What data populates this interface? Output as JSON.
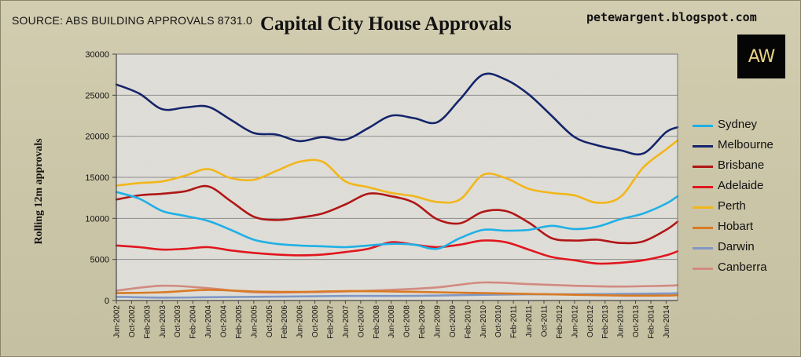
{
  "header": {
    "source": "SOURCE: ABS BUILDING APPROVALS 8731.0",
    "blog": "petewargent.blogspot.com",
    "logo_text": "AW"
  },
  "colors": {
    "plot_bg": "#dcdad3",
    "grid": "#8c8c8c",
    "axis": "#444444"
  },
  "chart_data": {
    "type": "line",
    "title": "Capital City House Approvals",
    "ylabel": "Rolling 12m approvals",
    "xlabel": "",
    "ylim": [
      0,
      30000
    ],
    "yticks": [
      0,
      5000,
      10000,
      15000,
      20000,
      25000,
      30000
    ],
    "ytick_labels": [
      "0",
      "5000",
      "10000",
      "15000",
      "20000",
      "25000",
      "30000"
    ],
    "grid": true,
    "legend": "right",
    "x_start": "2002-06",
    "x_end": "2014-09",
    "xtick_labels": [
      "Jun-2002",
      "Oct-2002",
      "Feb-2003",
      "Jun-2003",
      "Oct-2003",
      "Feb-2004",
      "Jun-2004",
      "Oct-2004",
      "Feb-2005",
      "Jun-2005",
      "Oct-2005",
      "Feb-2006",
      "Jun-2006",
      "Oct-2006",
      "Feb-2007",
      "Jun-2007",
      "Oct-2007",
      "Feb-2008",
      "Jun-2008",
      "Oct-2008",
      "Feb-2009",
      "Jun-2009",
      "Oct-2009",
      "Feb-2010",
      "Jun-2010",
      "Oct-2010",
      "Feb-2011",
      "Jun-2011",
      "Oct-2011",
      "Feb-2012",
      "Jun-2012",
      "Oct-2012",
      "Feb-2013",
      "Jun-2013",
      "Oct-2013",
      "Feb-2014",
      "Jun-2014"
    ],
    "series": [
      {
        "name": "Sydney",
        "color": "#1fb0e6",
        "points": [
          [
            "2002-06",
            13200
          ],
          [
            "2002-12",
            12400
          ],
          [
            "2003-06",
            10900
          ],
          [
            "2003-12",
            10300
          ],
          [
            "2004-06",
            9700
          ],
          [
            "2004-12",
            8600
          ],
          [
            "2005-06",
            7400
          ],
          [
            "2005-12",
            6900
          ],
          [
            "2006-06",
            6700
          ],
          [
            "2006-12",
            6600
          ],
          [
            "2007-06",
            6500
          ],
          [
            "2007-12",
            6700
          ],
          [
            "2008-06",
            6900
          ],
          [
            "2008-12",
            6800
          ],
          [
            "2009-06",
            6300
          ],
          [
            "2009-12",
            7600
          ],
          [
            "2010-06",
            8600
          ],
          [
            "2010-12",
            8500
          ],
          [
            "2011-06",
            8600
          ],
          [
            "2011-12",
            9100
          ],
          [
            "2012-06",
            8700
          ],
          [
            "2012-12",
            9000
          ],
          [
            "2013-06",
            9900
          ],
          [
            "2013-12",
            10600
          ],
          [
            "2014-06",
            11800
          ],
          [
            "2014-09",
            12700
          ]
        ]
      },
      {
        "name": "Melbourne",
        "color": "#14246b",
        "points": [
          [
            "2002-06",
            26300
          ],
          [
            "2002-12",
            25200
          ],
          [
            "2003-06",
            23300
          ],
          [
            "2003-12",
            23500
          ],
          [
            "2004-06",
            23600
          ],
          [
            "2004-12",
            22000
          ],
          [
            "2005-06",
            20400
          ],
          [
            "2005-12",
            20200
          ],
          [
            "2006-06",
            19400
          ],
          [
            "2006-12",
            19900
          ],
          [
            "2007-06",
            19600
          ],
          [
            "2007-12",
            21000
          ],
          [
            "2008-06",
            22500
          ],
          [
            "2008-12",
            22200
          ],
          [
            "2009-06",
            21700
          ],
          [
            "2009-12",
            24500
          ],
          [
            "2010-06",
            27500
          ],
          [
            "2010-12",
            26900
          ],
          [
            "2011-06",
            25100
          ],
          [
            "2011-12",
            22500
          ],
          [
            "2012-06",
            19900
          ],
          [
            "2012-12",
            18900
          ],
          [
            "2013-06",
            18300
          ],
          [
            "2013-12",
            17900
          ],
          [
            "2014-06",
            20500
          ],
          [
            "2014-09",
            21100
          ]
        ]
      },
      {
        "name": "Brisbane",
        "color": "#b01616",
        "points": [
          [
            "2002-06",
            12300
          ],
          [
            "2002-12",
            12800
          ],
          [
            "2003-06",
            13000
          ],
          [
            "2003-12",
            13300
          ],
          [
            "2004-06",
            13900
          ],
          [
            "2004-12",
            12100
          ],
          [
            "2005-06",
            10200
          ],
          [
            "2005-12",
            9800
          ],
          [
            "2006-06",
            10100
          ],
          [
            "2006-12",
            10600
          ],
          [
            "2007-06",
            11700
          ],
          [
            "2007-12",
            13000
          ],
          [
            "2008-06",
            12700
          ],
          [
            "2008-12",
            11900
          ],
          [
            "2009-06",
            9900
          ],
          [
            "2009-12",
            9400
          ],
          [
            "2010-06",
            10800
          ],
          [
            "2010-12",
            10900
          ],
          [
            "2011-06",
            9500
          ],
          [
            "2011-12",
            7600
          ],
          [
            "2012-06",
            7300
          ],
          [
            "2012-12",
            7400
          ],
          [
            "2013-06",
            7000
          ],
          [
            "2013-12",
            7200
          ],
          [
            "2014-06",
            8600
          ],
          [
            "2014-09",
            9600
          ]
        ]
      },
      {
        "name": "Adelaide",
        "color": "#e0161e",
        "points": [
          [
            "2002-06",
            6700
          ],
          [
            "2002-12",
            6500
          ],
          [
            "2003-06",
            6200
          ],
          [
            "2003-12",
            6300
          ],
          [
            "2004-06",
            6500
          ],
          [
            "2004-12",
            6100
          ],
          [
            "2005-06",
            5800
          ],
          [
            "2005-12",
            5600
          ],
          [
            "2006-06",
            5500
          ],
          [
            "2006-12",
            5600
          ],
          [
            "2007-06",
            5900
          ],
          [
            "2007-12",
            6300
          ],
          [
            "2008-06",
            7100
          ],
          [
            "2008-12",
            6800
          ],
          [
            "2009-06",
            6500
          ],
          [
            "2009-12",
            6800
          ],
          [
            "2010-06",
            7300
          ],
          [
            "2010-12",
            7100
          ],
          [
            "2011-06",
            6200
          ],
          [
            "2011-12",
            5300
          ],
          [
            "2012-06",
            4900
          ],
          [
            "2012-12",
            4500
          ],
          [
            "2013-06",
            4600
          ],
          [
            "2013-12",
            4900
          ],
          [
            "2014-06",
            5500
          ],
          [
            "2014-09",
            6000
          ]
        ]
      },
      {
        "name": "Perth",
        "color": "#f2b61a",
        "points": [
          [
            "2002-06",
            14000
          ],
          [
            "2002-12",
            14300
          ],
          [
            "2003-06",
            14500
          ],
          [
            "2003-12",
            15200
          ],
          [
            "2004-06",
            16000
          ],
          [
            "2004-12",
            14900
          ],
          [
            "2005-06",
            14700
          ],
          [
            "2005-12",
            15800
          ],
          [
            "2006-06",
            16900
          ],
          [
            "2006-12",
            16900
          ],
          [
            "2007-06",
            14500
          ],
          [
            "2007-12",
            13800
          ],
          [
            "2008-06",
            13100
          ],
          [
            "2008-12",
            12700
          ],
          [
            "2009-06",
            12000
          ],
          [
            "2009-12",
            12300
          ],
          [
            "2010-06",
            15300
          ],
          [
            "2010-12",
            14900
          ],
          [
            "2011-06",
            13600
          ],
          [
            "2011-12",
            13100
          ],
          [
            "2012-06",
            12800
          ],
          [
            "2012-12",
            11900
          ],
          [
            "2013-06",
            12600
          ],
          [
            "2013-12",
            16200
          ],
          [
            "2014-06",
            18400
          ],
          [
            "2014-09",
            19500
          ]
        ]
      },
      {
        "name": "Hobart",
        "color": "#d97a24",
        "points": [
          [
            "2002-06",
            900
          ],
          [
            "2003-06",
            1000
          ],
          [
            "2004-06",
            1300
          ],
          [
            "2005-06",
            1100
          ],
          [
            "2006-06",
            1050
          ],
          [
            "2007-06",
            1150
          ],
          [
            "2008-06",
            1100
          ],
          [
            "2009-06",
            1000
          ],
          [
            "2010-06",
            900
          ],
          [
            "2011-06",
            800
          ],
          [
            "2012-06",
            700
          ],
          [
            "2013-06",
            600
          ],
          [
            "2014-06",
            600
          ],
          [
            "2014-09",
            650
          ]
        ]
      },
      {
        "name": "Darwin",
        "color": "#7f98c4",
        "points": [
          [
            "2002-06",
            450
          ],
          [
            "2003-06",
            350
          ],
          [
            "2004-06",
            400
          ],
          [
            "2005-06",
            450
          ],
          [
            "2006-06",
            500
          ],
          [
            "2007-06",
            550
          ],
          [
            "2008-06",
            550
          ],
          [
            "2009-06",
            600
          ],
          [
            "2010-06",
            700
          ],
          [
            "2011-06",
            750
          ],
          [
            "2012-06",
            750
          ],
          [
            "2013-06",
            800
          ],
          [
            "2014-06",
            850
          ],
          [
            "2014-09",
            900
          ]
        ]
      },
      {
        "name": "Canberra",
        "color": "#d28a80",
        "points": [
          [
            "2002-06",
            1200
          ],
          [
            "2003-06",
            1800
          ],
          [
            "2004-06",
            1500
          ],
          [
            "2005-06",
            1000
          ],
          [
            "2006-06",
            1000
          ],
          [
            "2007-06",
            1100
          ],
          [
            "2008-06",
            1300
          ],
          [
            "2009-06",
            1600
          ],
          [
            "2010-06",
            2200
          ],
          [
            "2011-06",
            2000
          ],
          [
            "2012-06",
            1800
          ],
          [
            "2013-06",
            1700
          ],
          [
            "2014-06",
            1800
          ],
          [
            "2014-09",
            1850
          ]
        ]
      }
    ]
  }
}
